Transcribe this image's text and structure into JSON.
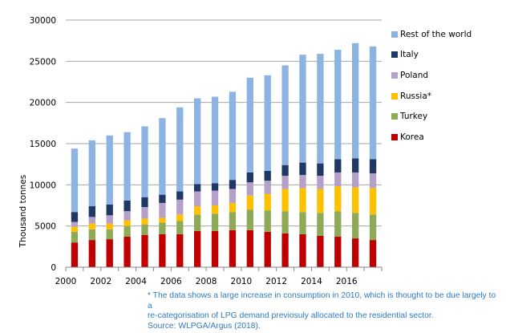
{
  "chart_data": {
    "type": "bar",
    "stacked": true,
    "title": "",
    "xlabel": "",
    "ylabel": "Thousand tonnes",
    "ylim": [
      0,
      30000
    ],
    "yticks": [
      0,
      5000,
      10000,
      15000,
      20000,
      25000,
      30000
    ],
    "ytick_labels": [
      "0",
      "5000",
      "10000",
      "15000",
      "20000",
      "25000",
      "30000"
    ],
    "categories": [
      "2000",
      "2001",
      "2002",
      "2003",
      "2004",
      "2005",
      "2006",
      "2007",
      "2008",
      "2009",
      "2010",
      "2011",
      "2012",
      "2013",
      "2014",
      "2015",
      "2016",
      "2017"
    ],
    "xtick_labels": [
      "2000",
      "2002",
      "2004",
      "2006",
      "2008",
      "2010",
      "2012",
      "2014",
      "2016"
    ],
    "grid": true,
    "legend_position": "right",
    "series": [
      {
        "name": "Korea",
        "color": "#c00000",
        "values": [
          3000,
          3300,
          3400,
          3700,
          3900,
          4000,
          4000,
          4400,
          4400,
          4500,
          4500,
          4300,
          4100,
          4000,
          3800,
          3700,
          3500,
          3300
        ]
      },
      {
        "name": "Turkey",
        "color": "#8faa56",
        "values": [
          1300,
          1300,
          1200,
          1300,
          1300,
          1400,
          1600,
          2000,
          2100,
          2200,
          2500,
          2600,
          2700,
          2700,
          2800,
          3100,
          3100,
          3100
        ]
      },
      {
        "name": "Russia*",
        "color": "#ffc000",
        "values": [
          600,
          700,
          700,
          700,
          700,
          600,
          800,
          1000,
          1000,
          1100,
          1700,
          2000,
          2700,
          2900,
          2900,
          3000,
          3100,
          3200
        ]
      },
      {
        "name": "Poland",
        "color": "#b4a0c8",
        "values": [
          600,
          800,
          1000,
          1100,
          1400,
          1800,
          1800,
          1800,
          1800,
          1700,
          1600,
          1600,
          1600,
          1600,
          1600,
          1700,
          1800,
          1800
        ]
      },
      {
        "name": "Italy",
        "color": "#1f3864",
        "values": [
          1200,
          1300,
          1300,
          1300,
          1200,
          1000,
          1000,
          900,
          900,
          1100,
          1200,
          1200,
          1300,
          1500,
          1500,
          1600,
          1700,
          1700
        ]
      },
      {
        "name": "Rest of the world",
        "color": "#8db3e2",
        "values": [
          7700,
          8000,
          8400,
          8300,
          8600,
          9300,
          10200,
          10400,
          10500,
          10700,
          11500,
          11600,
          12100,
          13100,
          13300,
          13300,
          14000,
          13700
        ]
      }
    ],
    "legend_order": [
      "Rest of the world",
      "Italy",
      "Poland",
      "Russia*",
      "Turkey",
      "Korea"
    ],
    "annotations": [
      "* The data shows a large increase in consumption in 2010, which is thought to be due largely to a re-categorisation of LPG demand previosuly allocated to the residential sector.",
      "Source: WLPGA/Argus (2018)."
    ]
  },
  "legend": {
    "items": [
      {
        "label": "Rest of the world",
        "color": "#8db3e2"
      },
      {
        "label": "Italy",
        "color": "#1f3864"
      },
      {
        "label": "Poland",
        "color": "#b4a0c8"
      },
      {
        "label": "Russia*",
        "color": "#ffc000"
      },
      {
        "label": "Turkey",
        "color": "#8faa56"
      },
      {
        "label": "Korea",
        "color": "#c00000"
      }
    ]
  },
  "note": {
    "line1": "* The data shows a large increase in consumption in 2010, which is thought to be due largely to a",
    "line2": "re-categorisation of LPG demand previosuly allocated to the residential sector.",
    "source": "Source: WLPGA/Argus (2018)."
  }
}
